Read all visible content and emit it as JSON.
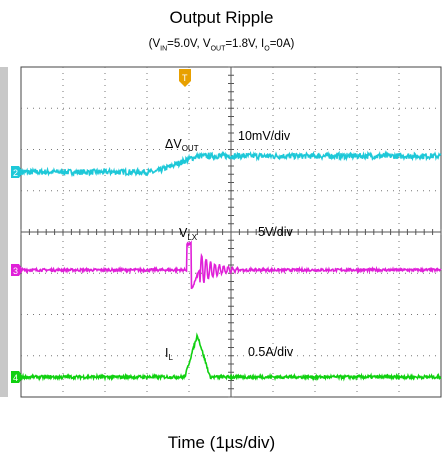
{
  "chart_data": {
    "type": "line",
    "title": "Output Ripple",
    "subtitle": {
      "parts": [
        {
          "t": "(V"
        },
        {
          "s": "IN"
        },
        {
          "t": "=5.0V, V"
        },
        {
          "s": "OUT"
        },
        {
          "t": "=1.8V, I"
        },
        {
          "s": "O"
        },
        {
          "t": "=0A)"
        }
      ]
    },
    "xlabel": "Time (1µs/div)",
    "grid": true,
    "divisions": {
      "x": 10,
      "y": 8
    },
    "x_range_us": [
      0,
      10
    ],
    "trigger": {
      "marker": "T",
      "color": "#e8a000",
      "time_us": 4.0
    },
    "series": [
      {
        "marker": "2",
        "color": "#1ec8d8",
        "label_main": "ΔV",
        "label_sub": "OUT",
        "scale": "10mV/div",
        "unit": "mV",
        "points": [
          [
            0,
            0
          ],
          [
            3.2,
            0
          ],
          [
            4.2,
            10
          ],
          [
            10,
            10
          ]
        ],
        "noise": 1.8
      },
      {
        "marker": "3",
        "color": "#e020d8",
        "label_main": "V",
        "label_sub": "LX",
        "scale": "5V/div",
        "unit": "V",
        "points": [
          [
            0,
            0
          ],
          [
            3.95,
            0
          ],
          [
            3.95,
            5
          ],
          [
            4.05,
            5
          ],
          [
            4.05,
            -4
          ],
          [
            4.25,
            0
          ],
          [
            10,
            0
          ]
        ],
        "ringing": true,
        "noise": 0.25
      },
      {
        "marker": "4",
        "color": "#10d010",
        "label_main": "I",
        "label_sub": "L",
        "scale": "0.5A/div",
        "unit": "A",
        "points": [
          [
            0,
            0
          ],
          [
            3.9,
            0
          ],
          [
            4.2,
            0.8
          ],
          [
            4.5,
            0
          ],
          [
            10,
            0
          ]
        ],
        "noise": 0.03
      }
    ]
  }
}
